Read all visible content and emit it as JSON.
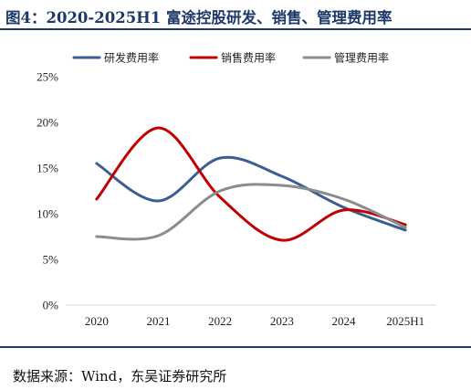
{
  "title": "图4：2020-2025H1 富途控股研发、销售、管理费用率",
  "source": "数据来源：Wind，东吴证券研究所",
  "chart_data": {
    "type": "line",
    "categories": [
      "2020",
      "2021",
      "2022",
      "2023",
      "2024",
      "2025H1"
    ],
    "ylim": [
      0,
      25
    ],
    "yticks": [
      0,
      5,
      10,
      15,
      20,
      25
    ],
    "ytick_labels": [
      "0%",
      "5%",
      "10%",
      "15%",
      "20%",
      "25%"
    ],
    "y_unit": "%",
    "grid": false,
    "legend_position": "top",
    "smooth": true,
    "series": [
      {
        "name": "研发费用率",
        "color": "#3c5f93",
        "values": [
          15.5,
          11.4,
          16.1,
          14.1,
          10.7,
          8.2
        ]
      },
      {
        "name": "销售费用率",
        "color": "#c00000",
        "values": [
          11.6,
          19.4,
          11.8,
          7.1,
          10.4,
          8.8
        ]
      },
      {
        "name": "管理费用率",
        "color": "#8c8c8c",
        "values": [
          7.5,
          7.6,
          12.5,
          13.1,
          11.6,
          8.5
        ]
      }
    ]
  }
}
